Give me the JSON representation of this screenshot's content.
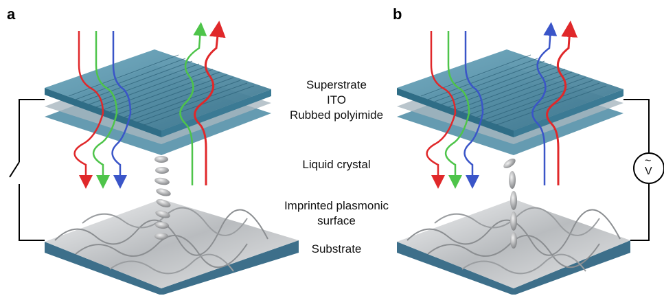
{
  "panels": {
    "a": "a",
    "b": "b"
  },
  "layers": {
    "superstrate": "Superstrate",
    "ito": "ITO",
    "polyimide": "Rubbed polyimide",
    "liquid_crystal": "Liquid crystal",
    "plasmonic_line1": "Imprinted plasmonic",
    "plasmonic_line2": "surface",
    "substrate": "Substrate"
  },
  "voltage": {
    "symbol": "~",
    "letter": "V"
  },
  "colors": {
    "glass": "#4a8aa3",
    "glass_dark": "#2f6d86",
    "red": "#e0282a",
    "green": "#4ec44a",
    "blue": "#3a55c8",
    "metal": "#c9cbcd",
    "substrate": "#3d6f8a"
  }
}
